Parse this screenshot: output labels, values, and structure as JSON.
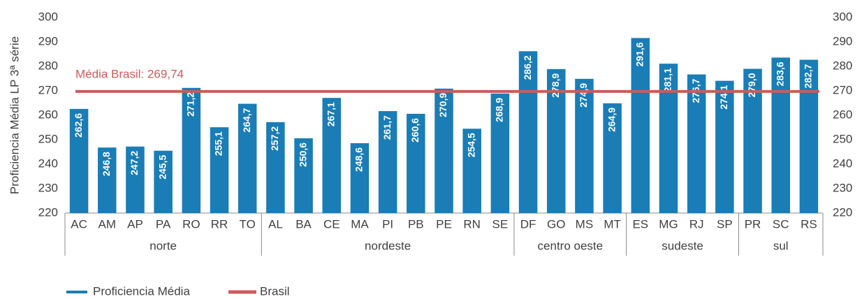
{
  "chart_data": {
    "type": "bar",
    "y_label": "Proficiencia Média LP 3ª série",
    "series_name": "Proficiencia Média",
    "color": "#1a7db5",
    "groups": [
      {
        "name": "norte",
        "categories": [
          "AC",
          "AM",
          "AP",
          "PA",
          "RO",
          "RR",
          "TO"
        ],
        "values": [
          262.6,
          246.8,
          247.2,
          245.5,
          271.2,
          255.1,
          264.7
        ],
        "value_labels": [
          "262,6",
          "246,8",
          "247,2",
          "245,5",
          "271,2",
          "255,1",
          "264,7"
        ]
      },
      {
        "name": "nordeste",
        "categories": [
          "AL",
          "BA",
          "CE",
          "MA",
          "PI",
          "PB",
          "PE",
          "RN",
          "SE"
        ],
        "values": [
          257.2,
          250.6,
          267.1,
          248.6,
          261.7,
          260.6,
          270.9,
          254.5,
          268.9
        ],
        "value_labels": [
          "257,2",
          "250,6",
          "267,1",
          "248,6",
          "261,7",
          "260,6",
          "270,9",
          "254,5",
          "268,9"
        ]
      },
      {
        "name": "centro oeste",
        "categories": [
          "DF",
          "GO",
          "MS",
          "MT"
        ],
        "values": [
          286.2,
          278.9,
          274.9,
          264.9
        ],
        "value_labels": [
          "286,2",
          "278,9",
          "274,9",
          "264,9"
        ]
      },
      {
        "name": "sudeste",
        "categories": [
          "ES",
          "MG",
          "RJ",
          "SP"
        ],
        "values": [
          291.6,
          281.1,
          276.7,
          274.1
        ],
        "value_labels": [
          "291,6",
          "281,1",
          "276,7",
          "274,1"
        ]
      },
      {
        "name": "sul",
        "categories": [
          "PR",
          "SC",
          "RS"
        ],
        "values": [
          279.0,
          283.6,
          282.7
        ],
        "value_labels": [
          "279,0",
          "283,6",
          "282,7"
        ]
      }
    ],
    "reference": {
      "name": "Brasil",
      "value": 269.74,
      "label": "Média Brasil: 269,74",
      "color": "#cd5a5c"
    },
    "ylim": [
      220,
      300
    ],
    "yticks": [
      220,
      230,
      240,
      250,
      260,
      270,
      280,
      290,
      300
    ],
    "y2lim": [
      220,
      300
    ],
    "y2ticks": [
      220,
      230,
      240,
      250,
      260,
      270,
      280,
      290,
      300
    ],
    "grid": false
  }
}
